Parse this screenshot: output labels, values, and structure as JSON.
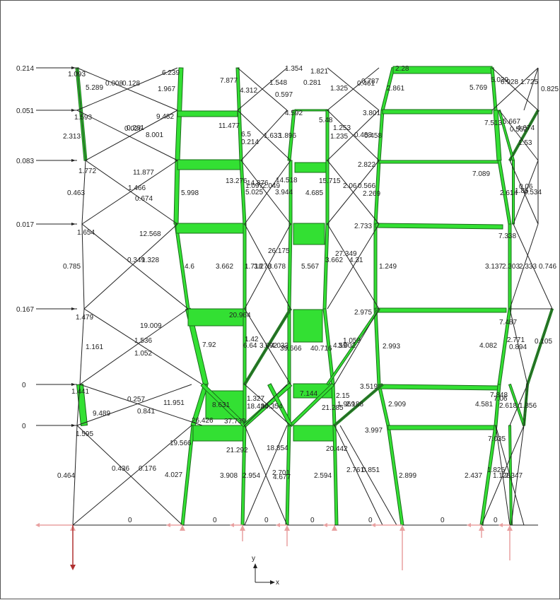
{
  "colors": {
    "member_fill": "#33e033",
    "member_stroke": "#1a6d1a",
    "line": "#222222",
    "support": "#e8a0a0",
    "reaction_dark": "#b03030"
  },
  "loads": [
    "0.214",
    "0.051",
    "0.083",
    "0.017",
    "0.167",
    "0",
    "0"
  ],
  "members": [
    {
      "t": 0.1,
      "v": "1.093"
    },
    {
      "t": 0.12,
      "v": "5.289"
    },
    {
      "t": 0.0,
      "v": "0.008"
    },
    {
      "t": 0.0,
      "v": "0.128"
    },
    {
      "t": 0.3,
      "v": "6.239"
    },
    {
      "t": 0.25,
      "v": "1.967"
    },
    {
      "t": 0.4,
      "v": "7.877"
    },
    {
      "t": 0.2,
      "v": "4.312"
    },
    {
      "t": 0.1,
      "v": "1.548"
    },
    {
      "t": 0.05,
      "v": "0.597"
    },
    {
      "t": 0.08,
      "v": "1.354"
    },
    {
      "t": 0.0,
      "v": "0.281"
    },
    {
      "t": 0.1,
      "v": "1.821"
    },
    {
      "t": 0.1,
      "v": "1.325"
    },
    {
      "t": 0.05,
      "v": "0.461"
    },
    {
      "t": 0.05,
      "v": "0.787"
    },
    {
      "t": 0.1,
      "v": "2.28"
    },
    {
      "t": 0.15,
      "v": "2.861"
    },
    {
      "t": 0.3,
      "v": "5.769"
    },
    {
      "t": 0.2,
      "v": "5.029"
    },
    {
      "t": 0.05,
      "v": "0.928"
    },
    {
      "t": 0.1,
      "v": "1.725"
    },
    {
      "t": 0.05,
      "v": "0.825"
    },
    {
      "t": 0.08,
      "v": "1.593"
    },
    {
      "t": 0.1,
      "v": "2.313"
    },
    {
      "t": 0.0,
      "v": "0.026"
    },
    {
      "t": 0.0,
      "v": "0.261"
    },
    {
      "t": 0.4,
      "v": "8.001"
    },
    {
      "t": 0.4,
      "v": "9.482"
    },
    {
      "t": 0.5,
      "v": "11.477"
    },
    {
      "t": 0.3,
      "v": "6.5"
    },
    {
      "t": 0.0,
      "v": "0.214"
    },
    {
      "t": 0.1,
      "v": "1.633"
    },
    {
      "t": 0.1,
      "v": "1.896"
    },
    {
      "t": 0.2,
      "v": "4.592"
    },
    {
      "t": 0.25,
      "v": "5.48"
    },
    {
      "t": 0.1,
      "v": "1.253"
    },
    {
      "t": 0.1,
      "v": "1.235"
    },
    {
      "t": 0.05,
      "v": "0.458"
    },
    {
      "t": 0.05,
      "v": "0.488"
    },
    {
      "t": 0.2,
      "v": "3.801"
    },
    {
      "t": 0.3,
      "v": "7.513"
    },
    {
      "t": 0.3,
      "v": "5.667"
    },
    {
      "t": 0.05,
      "v": "0.552"
    },
    {
      "t": 0.2,
      "v": "4.674"
    },
    {
      "t": 0.1,
      "v": "1.53"
    },
    {
      "t": 0.08,
      "v": "1.772"
    },
    {
      "t": 0.05,
      "v": "0.463"
    },
    {
      "t": 0.5,
      "v": "11.877"
    },
    {
      "t": 0.1,
      "v": "1.466"
    },
    {
      "t": 0.05,
      "v": "0.674"
    },
    {
      "t": 0.3,
      "v": "5.998"
    },
    {
      "t": 0.5,
      "v": "13.276"
    },
    {
      "t": 0.1,
      "v": "1.097"
    },
    {
      "t": 0.1,
      "v": "2.049"
    },
    {
      "t": 0.2,
      "v": "5.025"
    },
    {
      "t": 0.2,
      "v": "3.944"
    },
    {
      "t": 0.5,
      "v": "14.518"
    },
    {
      "t": 0.2,
      "v": "4.685"
    },
    {
      "t": 0.5,
      "v": "15.715"
    },
    {
      "t": 0.1,
      "v": "2.06"
    },
    {
      "t": 0.05,
      "v": "0.566"
    },
    {
      "t": 0.1,
      "v": "2.269"
    },
    {
      "t": 0.2,
      "v": "2.822"
    },
    {
      "t": 0.3,
      "v": "7.089"
    },
    {
      "t": 0.1,
      "v": "2.614"
    },
    {
      "t": 0.1,
      "v": "1.85"
    },
    {
      "t": 0.05,
      "v": "0.06"
    },
    {
      "t": 0.05,
      "v": "0.534"
    },
    {
      "t": 0.08,
      "v": "1.654"
    },
    {
      "t": 0.05,
      "v": "0.785"
    },
    {
      "t": 0.5,
      "v": "12.568"
    },
    {
      "t": 0.05,
      "v": "0.349"
    },
    {
      "t": 0.1,
      "v": "1.328"
    },
    {
      "t": 0.25,
      "v": "4.6"
    },
    {
      "t": 0.2,
      "v": "3.662"
    },
    {
      "t": 0.5,
      "v": "14.876"
    },
    {
      "t": 0.1,
      "v": "1.718"
    },
    {
      "t": 0.1,
      "v": "3.278"
    },
    {
      "t": 0.1,
      "v": "3.678"
    },
    {
      "t": 0.6,
      "v": "26.175"
    },
    {
      "t": 0.25,
      "v": "5.567"
    },
    {
      "t": 0.6,
      "v": "27.349"
    },
    {
      "t": 0.2,
      "v": "3.662"
    },
    {
      "t": 0.1,
      "v": "4.31"
    },
    {
      "t": 0.1,
      "v": "1.249"
    },
    {
      "t": 0.2,
      "v": "2.733"
    },
    {
      "t": 0.3,
      "v": "7.338"
    },
    {
      "t": 0.2,
      "v": "3.137"
    },
    {
      "t": 0.2,
      "v": "2.303"
    },
    {
      "t": 0.2,
      "v": "2.333"
    },
    {
      "t": 0.1,
      "v": "0.746"
    },
    {
      "t": 0.08,
      "v": "1.479"
    },
    {
      "t": 0.08,
      "v": "1.161"
    },
    {
      "t": 0.6,
      "v": "19.009"
    },
    {
      "t": 0.1,
      "v": "1.536"
    },
    {
      "t": 0.08,
      "v": "1.052"
    },
    {
      "t": 0.4,
      "v": "7.92"
    },
    {
      "t": 0.6,
      "v": "20.964"
    },
    {
      "t": 0.1,
      "v": "1.42"
    },
    {
      "t": 0.2,
      "v": "6.64"
    },
    {
      "t": 0.2,
      "v": "3.092"
    },
    {
      "t": 0.2,
      "v": "4.033"
    },
    {
      "t": 0.8,
      "v": "39.666"
    },
    {
      "t": 0.8,
      "v": "40.716"
    },
    {
      "t": 0.1,
      "v": "1.059"
    },
    {
      "t": 0.2,
      "v": "4.59"
    },
    {
      "t": 0.2,
      "v": "3.002"
    },
    {
      "t": 0.2,
      "v": "2.975"
    },
    {
      "t": 0.2,
      "v": "2.993"
    },
    {
      "t": 0.3,
      "v": "7.487"
    },
    {
      "t": 0.2,
      "v": "4.082"
    },
    {
      "t": 0.1,
      "v": "2.771"
    },
    {
      "t": 0.05,
      "v": "0.894"
    },
    {
      "t": 0.05,
      "v": "0.105"
    },
    {
      "t": 0.08,
      "v": "1.441"
    },
    {
      "t": 0.4,
      "v": "9.489"
    },
    {
      "t": 0.05,
      "v": "0.257"
    },
    {
      "t": 0.05,
      "v": "0.841"
    },
    {
      "t": 0.5,
      "v": "11.951"
    },
    {
      "t": 0.8,
      "v": "8.631"
    },
    {
      "t": 0.1,
      "v": "1.327"
    },
    {
      "t": 0.3,
      "v": "7.144"
    },
    {
      "t": 0.6,
      "v": "18.484"
    },
    {
      "t": 0.6,
      "v": "10.354"
    },
    {
      "t": 0.6,
      "v": "21.285"
    },
    {
      "t": 0.1,
      "v": "2.15"
    },
    {
      "t": 0.1,
      "v": "1.969"
    },
    {
      "t": 0.1,
      "v": "2.188"
    },
    {
      "t": 0.2,
      "v": "3.519"
    },
    {
      "t": 0.2,
      "v": "2.909"
    },
    {
      "t": 0.2,
      "v": "4.581"
    },
    {
      "t": 0.3,
      "v": "7.848"
    },
    {
      "t": 0.3,
      "v": "7.06"
    },
    {
      "t": 0.1,
      "v": "2.618"
    },
    {
      "t": 0.1,
      "v": "1.856"
    },
    {
      "t": 0.08,
      "v": "1.595"
    },
    {
      "t": 0.6,
      "v": "26.426"
    },
    {
      "t": 0.6,
      "v": "37.739"
    },
    {
      "t": 0.5,
      "v": "19.566"
    },
    {
      "t": 0.6,
      "v": "21.292"
    },
    {
      "t": 0.5,
      "v": "18.854"
    },
    {
      "t": 0.6,
      "v": "20.442"
    },
    {
      "t": 0.2,
      "v": "3.997"
    },
    {
      "t": 0.3,
      "v": "7.035"
    },
    {
      "t": 0.05,
      "v": "0.464"
    },
    {
      "t": 0.05,
      "v": "0.436"
    },
    {
      "t": 0.05,
      "v": "0.176"
    },
    {
      "t": 0.2,
      "v": "4.027"
    },
    {
      "t": 0.2,
      "v": "3.908"
    },
    {
      "t": 0.1,
      "v": "2.954"
    },
    {
      "t": 0.1,
      "v": "2.701"
    },
    {
      "t": 0.2,
      "v": "4.677"
    },
    {
      "t": 0.1,
      "v": "2.594"
    },
    {
      "t": 0.1,
      "v": "2.761"
    },
    {
      "t": 0.05,
      "v": "0.851"
    },
    {
      "t": 0.1,
      "v": "2.899"
    },
    {
      "t": 0.1,
      "v": "2.437"
    },
    {
      "t": 0.1,
      "v": "1.825"
    },
    {
      "t": 0.1,
      "v": "1.128"
    },
    {
      "t": 0.1,
      "v": "2.347"
    }
  ],
  "base_labels": [
    "0",
    "0",
    "0",
    "0",
    "0",
    "0",
    "0"
  ],
  "axes": {
    "x": "x",
    "y": "y"
  }
}
